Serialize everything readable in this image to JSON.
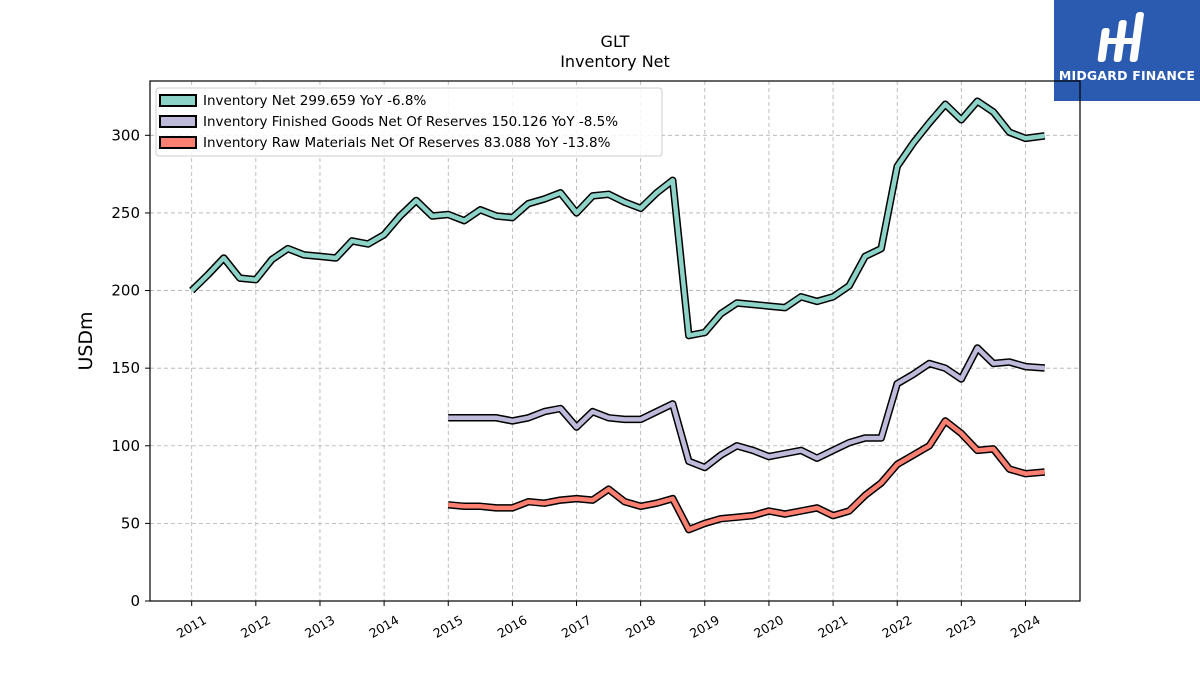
{
  "brand": {
    "name": "MIDGARD FINANCE",
    "logo_color": "#2b5bb0"
  },
  "chart_data": {
    "type": "line",
    "title": "GLT",
    "subtitle": "Inventory Net",
    "ylabel": "USDm",
    "xlabel": "",
    "ylim": [
      0,
      335
    ],
    "yticks": [
      0,
      50,
      100,
      150,
      200,
      250,
      300
    ],
    "xlim": [
      2010.35,
      2024.85
    ],
    "xticks": [
      2011,
      2012,
      2013,
      2014,
      2015,
      2016,
      2017,
      2018,
      2019,
      2020,
      2021,
      2022,
      2023,
      2024
    ],
    "grid": true,
    "legend_position": "top-left",
    "series": [
      {
        "name": "Inventory Net  299.659 YoY -6.8%",
        "color": "#8dd3c7",
        "x": [
          2011.0,
          2011.25,
          2011.5,
          2011.75,
          2012.0,
          2012.25,
          2012.5,
          2012.75,
          2013.0,
          2013.25,
          2013.5,
          2013.75,
          2014.0,
          2014.25,
          2014.5,
          2014.75,
          2015.0,
          2015.25,
          2015.5,
          2015.75,
          2016.0,
          2016.25,
          2016.5,
          2016.75,
          2017.0,
          2017.25,
          2017.5,
          2017.75,
          2018.0,
          2018.25,
          2018.5,
          2018.75,
          2019.0,
          2019.25,
          2019.5,
          2019.75,
          2020.0,
          2020.25,
          2020.5,
          2020.75,
          2021.0,
          2021.25,
          2021.5,
          2021.75,
          2022.0,
          2022.25,
          2022.5,
          2022.75,
          2023.0,
          2023.25,
          2023.5,
          2023.75,
          2024.0,
          2024.3
        ],
        "y": [
          200,
          210,
          221,
          208,
          207,
          220,
          227,
          223,
          222,
          221,
          232,
          230,
          236,
          248,
          258,
          248,
          249,
          245,
          252,
          248,
          247,
          256,
          259,
          263,
          250,
          261,
          262,
          257,
          253,
          263,
          271,
          171,
          173,
          185,
          192,
          191,
          190,
          189,
          196,
          193,
          196,
          203,
          222,
          227,
          280,
          295,
          308,
          320,
          310,
          322,
          315,
          302,
          298,
          299.659
        ]
      },
      {
        "name": "Inventory Finished Goods Net Of Reserves  150.126 YoY -8.5%",
        "color": "#bebada",
        "x": [
          2015.0,
          2015.25,
          2015.5,
          2015.75,
          2016.0,
          2016.25,
          2016.5,
          2016.75,
          2017.0,
          2017.25,
          2017.5,
          2017.75,
          2018.0,
          2018.25,
          2018.5,
          2018.75,
          2019.0,
          2019.25,
          2019.5,
          2019.75,
          2020.0,
          2020.25,
          2020.5,
          2020.75,
          2021.0,
          2021.25,
          2021.5,
          2021.75,
          2022.0,
          2022.25,
          2022.5,
          2022.75,
          2023.0,
          2023.25,
          2023.5,
          2023.75,
          2024.0,
          2024.3
        ],
        "y": [
          118,
          118,
          118,
          118,
          116,
          118,
          122,
          124,
          112,
          122,
          118,
          117,
          117,
          122,
          127,
          90,
          86,
          94,
          100,
          97,
          93,
          95,
          97,
          92,
          97,
          102,
          105,
          105,
          140,
          146,
          153,
          150,
          143,
          163,
          153,
          154,
          151,
          150.126
        ]
      },
      {
        "name": "Inventory Raw Materials Net Of Reserves  83.088 YoY -13.8%",
        "color": "#fb8072",
        "x": [
          2015.0,
          2015.25,
          2015.5,
          2015.75,
          2016.0,
          2016.25,
          2016.5,
          2016.75,
          2017.0,
          2017.25,
          2017.5,
          2017.75,
          2018.0,
          2018.25,
          2018.5,
          2018.75,
          2019.0,
          2019.25,
          2019.5,
          2019.75,
          2020.0,
          2020.25,
          2020.5,
          2020.75,
          2021.0,
          2021.25,
          2021.5,
          2021.75,
          2022.0,
          2022.25,
          2022.5,
          2022.75,
          2023.0,
          2023.25,
          2023.5,
          2023.75,
          2024.0,
          2024.3
        ],
        "y": [
          62,
          61,
          61,
          60,
          60,
          64,
          63,
          65,
          66,
          65,
          72,
          64,
          61,
          63,
          66,
          46,
          50,
          53,
          54,
          55,
          58,
          56,
          58,
          60,
          55,
          58,
          68,
          76,
          88,
          94,
          100,
          116,
          108,
          97,
          98,
          85,
          82,
          83.088
        ]
      }
    ]
  }
}
